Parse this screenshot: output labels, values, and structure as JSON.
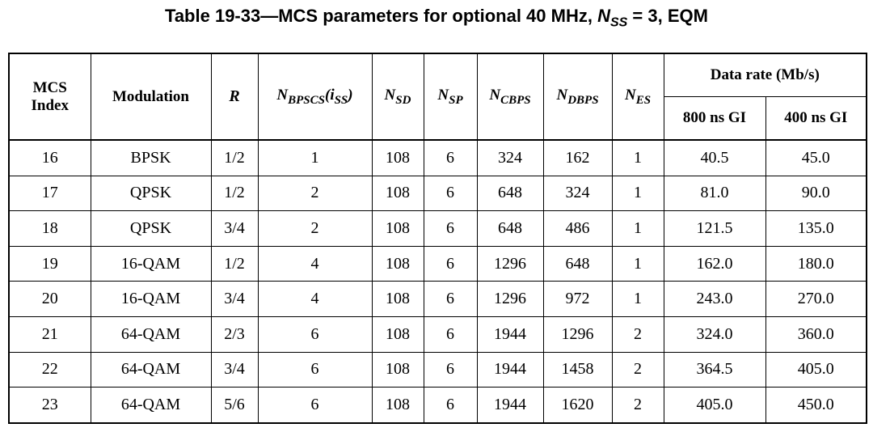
{
  "title": {
    "prefix": "Table 19-33—MCS parameters for optional 40 MHz, ",
    "var_main": "N",
    "var_sub": "SS",
    "suffix": " = 3, EQM"
  },
  "headers": {
    "mcs_line1": "MCS",
    "mcs_line2": "Index",
    "modulation": "Modulation",
    "r": "R",
    "nbpscs_main": "N",
    "nbpscs_sub": "BPSCS",
    "nbpscs_paren_open": "(",
    "nbpscs_arg_main": "i",
    "nbpscs_arg_sub": "SS",
    "nbpscs_paren_close": ")",
    "nsd_main": "N",
    "nsd_sub": "SD",
    "nsp_main": "N",
    "nsp_sub": "SP",
    "ncbps_main": "N",
    "ncbps_sub": "CBPS",
    "ndbps_main": "N",
    "ndbps_sub": "DBPS",
    "nes_main": "N",
    "nes_sub": "ES",
    "data_rate": "Data rate (Mb/s)",
    "gi800": "800 ns GI",
    "gi400": "400 ns GI"
  },
  "rows": [
    [
      "16",
      "BPSK",
      "1/2",
      "1",
      "108",
      "6",
      "324",
      "162",
      "1",
      "40.5",
      "45.0"
    ],
    [
      "17",
      "QPSK",
      "1/2",
      "2",
      "108",
      "6",
      "648",
      "324",
      "1",
      "81.0",
      "90.0"
    ],
    [
      "18",
      "QPSK",
      "3/4",
      "2",
      "108",
      "6",
      "648",
      "486",
      "1",
      "121.5",
      "135.0"
    ],
    [
      "19",
      "16-QAM",
      "1/2",
      "4",
      "108",
      "6",
      "1296",
      "648",
      "1",
      "162.0",
      "180.0"
    ],
    [
      "20",
      "16-QAM",
      "3/4",
      "4",
      "108",
      "6",
      "1296",
      "972",
      "1",
      "243.0",
      "270.0"
    ],
    [
      "21",
      "64-QAM",
      "2/3",
      "6",
      "108",
      "6",
      "1944",
      "1296",
      "2",
      "324.0",
      "360.0"
    ],
    [
      "22",
      "64-QAM",
      "3/4",
      "6",
      "108",
      "6",
      "1944",
      "1458",
      "2",
      "364.5",
      "405.0"
    ],
    [
      "23",
      "64-QAM",
      "5/6",
      "6",
      "108",
      "6",
      "1944",
      "1620",
      "2",
      "405.0",
      "450.0"
    ]
  ]
}
